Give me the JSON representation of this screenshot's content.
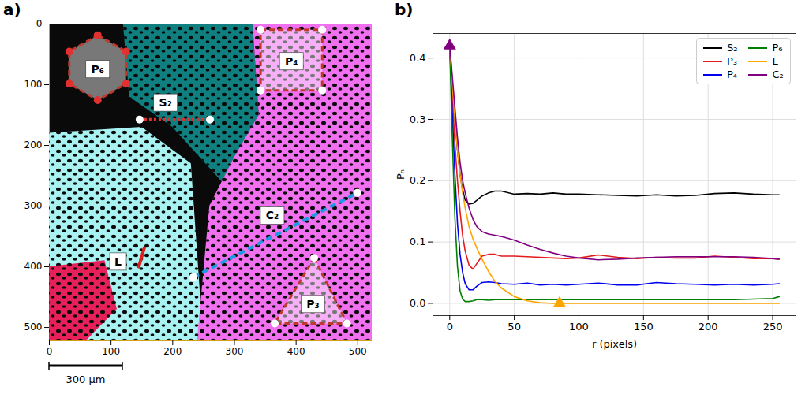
{
  "chart_data": [
    {
      "panel_label": "a)",
      "type": "image",
      "xlim": [
        0,
        522
      ],
      "ylim": [
        522,
        0
      ],
      "xticks": [
        0,
        100,
        200,
        300,
        400,
        500
      ],
      "yticks": [
        0,
        100,
        200,
        300,
        400,
        500
      ],
      "regions": [
        {
          "color": "#a8f2f2",
          "points": [
            [
              0,
              180
            ],
            [
              150,
              170
            ],
            [
              230,
              230
            ],
            [
              250,
              522
            ],
            [
              0,
              522
            ]
          ]
        },
        {
          "color": "#0f7f7f",
          "points": [
            [
              120,
              0
            ],
            [
              330,
              0
            ],
            [
              340,
              150
            ],
            [
              280,
              260
            ],
            [
              200,
              170
            ],
            [
              130,
              120
            ]
          ]
        },
        {
          "color": "#f070f0",
          "points": [
            [
              330,
              0
            ],
            [
              522,
              0
            ],
            [
              522,
              522
            ],
            [
              240,
              522
            ],
            [
              260,
              300
            ],
            [
              300,
              220
            ],
            [
              340,
              150
            ]
          ]
        },
        {
          "color": "#e8205a",
          "points": [
            [
              0,
              400
            ],
            [
              90,
              390
            ],
            [
              110,
              470
            ],
            [
              60,
              522
            ],
            [
              0,
              522
            ]
          ]
        }
      ],
      "annotations": [
        {
          "label": "P₆",
          "shape": "polygon",
          "color": "#c0392b",
          "marker": "circle",
          "marker_color": "#e03030",
          "points": [
            [
              79,
              19
            ],
            [
              125,
              46
            ],
            [
              125,
              99
            ],
            [
              79,
              126
            ],
            [
              33,
              99
            ],
            [
              33,
              46
            ]
          ],
          "label_at": [
            79,
            75
          ]
        },
        {
          "label": "P₄",
          "shape": "polygon",
          "color": "#c0392b",
          "marker": "circle",
          "marker_color": "#ffffff",
          "points": [
            [
              343,
              10
            ],
            [
              443,
              10
            ],
            [
              443,
              110
            ],
            [
              343,
              110
            ]
          ],
          "label_at": [
            393,
            62
          ]
        },
        {
          "label": "P₃",
          "shape": "polygon",
          "color": "#c0392b",
          "marker": "circle",
          "marker_color": "#ffffff",
          "points": [
            [
              430,
              386
            ],
            [
              483,
              494
            ],
            [
              366,
              494
            ]
          ],
          "label_at": [
            428,
            462
          ]
        },
        {
          "label": "S₂",
          "shape": "line",
          "color": "#e03030",
          "line_style": "dotted",
          "marker": "circle",
          "marker_color": "#ffffff",
          "points": [
            [
              147,
              158
            ],
            [
              261,
              158
            ]
          ],
          "label_at": [
            189,
            130
          ]
        },
        {
          "label": "C₂",
          "shape": "line",
          "color": "#1e9be0",
          "line_style": "dashed",
          "marker": "circle",
          "marker_color": "#ffffff",
          "points": [
            [
              234,
              418
            ],
            [
              500,
              279
            ]
          ],
          "label_at": [
            362,
            316
          ]
        },
        {
          "label": "L",
          "shape": "line",
          "color": "#e02020",
          "line_style": "solid",
          "points": [
            [
              145,
              403
            ],
            [
              155,
              368
            ]
          ],
          "label_at": [
            112,
            392
          ]
        }
      ],
      "scale_bar": {
        "label": "300 µm",
        "length": 119
      }
    },
    {
      "panel_label": "b)",
      "type": "line",
      "x_label": "r (pixels)",
      "y_label": "Pₙ",
      "xlim": [
        -13,
        268
      ],
      "ylim": [
        -0.02,
        0.44
      ],
      "xticks": [
        0,
        50,
        100,
        150,
        200,
        250
      ],
      "yticks": [
        {
          "value": 0,
          "label": "0.0"
        },
        0.1,
        0.2,
        0.3,
        0.4
      ],
      "grid": true,
      "legend": "upper right",
      "marker": "triangle",
      "x": [
        0,
        2,
        4,
        6,
        8,
        10,
        12,
        15,
        18,
        21,
        25,
        30,
        35,
        40,
        50,
        60,
        70,
        80,
        90,
        100,
        115,
        130,
        145,
        160,
        175,
        190,
        205,
        220,
        235,
        250,
        255
      ],
      "series": [
        {
          "name": "S₂",
          "color": "#000000",
          "values": [
            0.42,
            0.36,
            0.3,
            0.25,
            0.21,
            0.185,
            0.168,
            0.162,
            0.163,
            0.168,
            0.175,
            0.18,
            0.183,
            0.183,
            0.178,
            0.179,
            0.178,
            0.18,
            0.178,
            0.178,
            0.177,
            0.176,
            0.175,
            0.177,
            0.175,
            0.176,
            0.179,
            0.18,
            0.178,
            0.177,
            0.177
          ]
        },
        {
          "name": "P₃",
          "color": "#e41a1c",
          "values": [
            0.42,
            0.34,
            0.26,
            0.2,
            0.15,
            0.11,
            0.085,
            0.062,
            0.056,
            0.065,
            0.077,
            0.08,
            0.08,
            0.077,
            0.077,
            0.076,
            0.075,
            0.074,
            0.073,
            0.074,
            0.079,
            0.075,
            0.073,
            0.075,
            0.074,
            0.074,
            0.077,
            0.075,
            0.073,
            0.073,
            0.072
          ]
        },
        {
          "name": "P₄",
          "color": "#0000ee",
          "values": [
            0.42,
            0.31,
            0.21,
            0.13,
            0.08,
            0.05,
            0.032,
            0.022,
            0.022,
            0.028,
            0.034,
            0.035,
            0.034,
            0.032,
            0.031,
            0.033,
            0.03,
            0.031,
            0.03,
            0.031,
            0.033,
            0.03,
            0.03,
            0.034,
            0.032,
            0.031,
            0.03,
            0.031,
            0.03,
            0.031,
            0.032
          ]
        },
        {
          "name": "P₆",
          "color": "#008000",
          "values": [
            0.42,
            0.27,
            0.14,
            0.06,
            0.02,
            0.007,
            0.003,
            0.003,
            0.004,
            0.006,
            0.006,
            0.005,
            0.006,
            0.006,
            0.006,
            0.006,
            0.006,
            0.006,
            0.006,
            0.006,
            0.006,
            0.006,
            0.006,
            0.006,
            0.006,
            0.006,
            0.006,
            0.006,
            0.007,
            0.008,
            0.011
          ]
        },
        {
          "name": "L",
          "color": "#ffa500",
          "values": [
            0.42,
            0.36,
            0.3,
            0.25,
            0.21,
            0.18,
            0.155,
            0.125,
            0.105,
            0.09,
            0.072,
            0.052,
            0.036,
            0.025,
            0.011,
            0.004,
            0.001,
            0,
            0,
            0,
            0,
            0,
            0,
            0,
            0,
            0,
            0,
            0,
            0,
            0,
            0
          ]
        },
        {
          "name": "C₂",
          "color": "#800080",
          "values": [
            0.42,
            0.37,
            0.32,
            0.27,
            0.23,
            0.2,
            0.18,
            0.155,
            0.137,
            0.125,
            0.117,
            0.113,
            0.111,
            0.109,
            0.103,
            0.095,
            0.088,
            0.082,
            0.077,
            0.074,
            0.071,
            0.072,
            0.074,
            0.075,
            0.076,
            0.076,
            0.076,
            0.076,
            0.075,
            0.073,
            0.072
          ]
        }
      ],
      "markers": [
        {
          "x": 0,
          "y": 0.42,
          "color": "#800080"
        },
        {
          "x": 85,
          "y": 0,
          "color": "#ffa500"
        }
      ]
    }
  ]
}
